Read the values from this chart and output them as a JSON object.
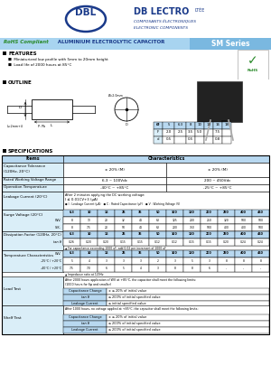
{
  "bg_color": "#ffffff",
  "logo_color": "#1a3a8a",
  "banner_bg1": "#a8d4f0",
  "banner_bg2": "#7ab8e0",
  "rohs_green": "#2a8a2a",
  "table_hdr_bg": "#b8d8f0",
  "cell_light_bg": "#daeef8",
  "cell_white": "#ffffff",
  "voltages": [
    "6.3",
    "10",
    "16",
    "25",
    "35",
    "50",
    "100",
    "160",
    "200",
    "250",
    "400",
    "450"
  ],
  "wv_vals": [
    "8",
    "13",
    "20",
    "32",
    "44",
    "63",
    "125",
    "200",
    "250",
    "320",
    "500",
    "500"
  ],
  "sk_vals": [
    "8",
    "7.5",
    "20",
    "50",
    "44",
    "63",
    "200",
    "750",
    "500",
    "400",
    "400",
    "500"
  ],
  "df_vals": [
    "0.26",
    "0.20",
    "0.20",
    "0.15",
    "0.15",
    "0.12",
    "0.12",
    "0.15",
    "0.15",
    "0.20",
    "0.24",
    "0.24"
  ],
  "tc1_vals": [
    "5",
    "4",
    "3",
    "3",
    "3",
    "2",
    "3",
    "5",
    "3",
    "8",
    "8",
    "8"
  ],
  "tc2_vals": [
    "7.5",
    "7.0",
    "6",
    "5",
    "4",
    "3",
    "8",
    "8",
    "6",
    "-",
    "-",
    "-"
  ],
  "dim_headers": [
    "Ø",
    "5",
    "6.3",
    "8",
    "10",
    "13",
    "16",
    "18"
  ],
  "dim_f": [
    "F",
    "2.0",
    "2.5",
    "3.5",
    "5.0",
    "",
    "7.5",
    ""
  ],
  "dim_d": [
    "d",
    "0.5",
    "",
    "0.5",
    "",
    "",
    "0.8",
    ""
  ]
}
